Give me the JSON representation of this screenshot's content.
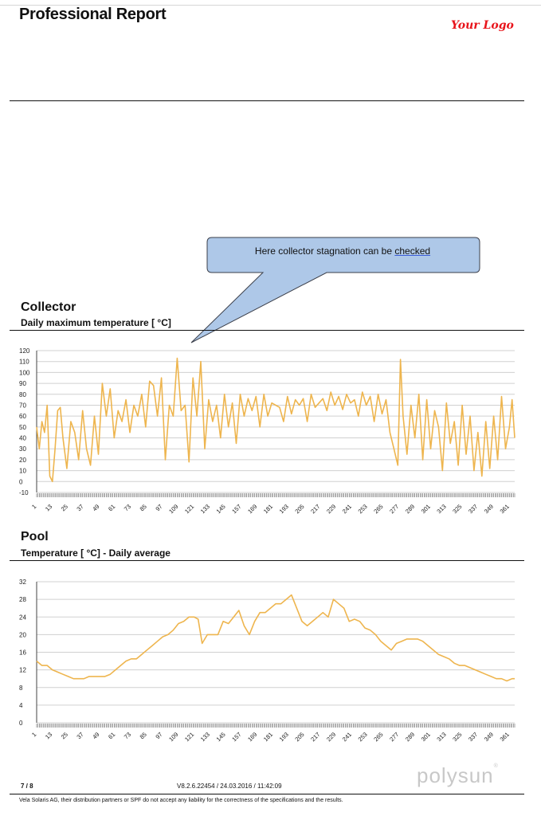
{
  "header": {
    "title": "Professional Report",
    "logo": "Your Logo"
  },
  "callout": {
    "text": "Here collector stagnation can be ",
    "link": "checked"
  },
  "sections": {
    "collector": {
      "title": "Collector",
      "subtitle": "Daily maximum temperature [ °C]"
    },
    "pool": {
      "title": "Pool",
      "subtitle": "Temperature [ °C] - Daily average"
    }
  },
  "colors": {
    "series": "#eeb54e",
    "grid": "#d0d0d0",
    "logo": "#e8141b",
    "callout_fill": "#aec8e8"
  },
  "chart_data": [
    {
      "type": "line",
      "title": "Collector - Daily maximum temperature [ °C]",
      "xlabel": "",
      "ylabel": "",
      "ylim": [
        -10,
        120
      ],
      "yticks": [
        -10,
        0,
        10,
        20,
        30,
        40,
        50,
        60,
        70,
        80,
        90,
        100,
        110,
        120
      ],
      "xticks": [
        "1",
        "13",
        "25",
        "37",
        "49",
        "61",
        "73",
        "85",
        "97",
        "109",
        "121",
        "133",
        "145",
        "157",
        "169",
        "181",
        "193",
        "205",
        "217",
        "229",
        "241",
        "253",
        "265",
        "277",
        "289",
        "301",
        "313",
        "325",
        "337",
        "349",
        "361"
      ],
      "x_range": [
        1,
        365
      ],
      "series": [
        {
          "name": "Daily maximum temperature",
          "x": [
            1,
            3,
            5,
            7,
            9,
            11,
            13,
            15,
            17,
            19,
            21,
            24,
            27,
            30,
            33,
            36,
            39,
            42,
            45,
            48,
            51,
            54,
            57,
            60,
            63,
            66,
            69,
            72,
            75,
            78,
            81,
            84,
            87,
            90,
            93,
            96,
            99,
            102,
            105,
            108,
            111,
            114,
            117,
            120,
            123,
            126,
            129,
            132,
            135,
            138,
            141,
            144,
            147,
            150,
            153,
            156,
            159,
            162,
            165,
            168,
            171,
            174,
            177,
            180,
            183,
            186,
            189,
            192,
            195,
            198,
            201,
            204,
            207,
            210,
            213,
            216,
            219,
            222,
            225,
            228,
            231,
            234,
            237,
            240,
            243,
            246,
            249,
            252,
            255,
            258,
            261,
            264,
            267,
            270,
            273,
            276,
            278,
            280,
            283,
            286,
            289,
            292,
            295,
            298,
            301,
            304,
            307,
            310,
            313,
            316,
            319,
            322,
            325,
            328,
            331,
            334,
            337,
            340,
            343,
            346,
            349,
            352,
            355,
            358,
            361,
            363,
            365
          ],
          "y": [
            50,
            30,
            55,
            45,
            70,
            5,
            0,
            30,
            65,
            68,
            40,
            12,
            55,
            45,
            20,
            65,
            30,
            15,
            60,
            25,
            90,
            60,
            85,
            40,
            65,
            55,
            75,
            45,
            70,
            60,
            80,
            50,
            92,
            88,
            60,
            95,
            20,
            70,
            60,
            113,
            65,
            70,
            18,
            95,
            60,
            110,
            30,
            75,
            55,
            70,
            40,
            80,
            50,
            72,
            35,
            80,
            60,
            76,
            65,
            78,
            50,
            80,
            60,
            72,
            70,
            68,
            55,
            78,
            62,
            75,
            70,
            76,
            55,
            80,
            68,
            72,
            76,
            65,
            82,
            70,
            78,
            66,
            80,
            72,
            75,
            60,
            82,
            70,
            78,
            55,
            80,
            62,
            75,
            45,
            30,
            15,
            112,
            60,
            25,
            70,
            40,
            80,
            20,
            75,
            30,
            65,
            50,
            10,
            72,
            35,
            55,
            15,
            70,
            25,
            60,
            10,
            45,
            5,
            55,
            12,
            60,
            20,
            78,
            30,
            50,
            75,
            40
          ]
        }
      ]
    },
    {
      "type": "line",
      "title": "Pool - Temperature [ °C] - Daily average",
      "xlabel": "",
      "ylabel": "",
      "ylim": [
        0,
        32
      ],
      "yticks": [
        0,
        4,
        8,
        12,
        16,
        20,
        24,
        28,
        32
      ],
      "xticks": [
        "1",
        "13",
        "25",
        "37",
        "49",
        "61",
        "73",
        "85",
        "97",
        "109",
        "121",
        "133",
        "145",
        "157",
        "169",
        "181",
        "193",
        "205",
        "217",
        "229",
        "241",
        "253",
        "265",
        "277",
        "289",
        "301",
        "313",
        "325",
        "337",
        "349",
        "361"
      ],
      "x_range": [
        1,
        365
      ],
      "series": [
        {
          "name": "Daily average temperature",
          "x": [
            1,
            5,
            9,
            13,
            17,
            21,
            25,
            29,
            33,
            37,
            41,
            45,
            49,
            53,
            57,
            61,
            65,
            69,
            73,
            77,
            81,
            85,
            89,
            93,
            97,
            101,
            105,
            109,
            113,
            117,
            121,
            124,
            127,
            131,
            135,
            139,
            143,
            147,
            151,
            155,
            159,
            163,
            167,
            171,
            175,
            179,
            183,
            187,
            191,
            195,
            199,
            203,
            207,
            211,
            215,
            219,
            223,
            227,
            231,
            235,
            239,
            243,
            247,
            251,
            255,
            259,
            263,
            267,
            271,
            275,
            279,
            283,
            287,
            291,
            295,
            299,
            303,
            307,
            311,
            315,
            319,
            323,
            327,
            331,
            335,
            339,
            343,
            347,
            351,
            355,
            359,
            363,
            365
          ],
          "y": [
            14,
            13,
            13,
            12,
            11.5,
            11,
            10.5,
            10,
            10,
            10,
            10.5,
            10.5,
            10.5,
            10.5,
            11,
            12,
            13,
            14,
            14.5,
            14.5,
            15.5,
            16.5,
            17.5,
            18.5,
            19.5,
            20,
            21,
            22.5,
            23,
            24,
            24,
            23.5,
            18,
            20,
            20,
            20,
            23,
            22.5,
            24,
            25.5,
            22,
            20,
            23,
            25,
            25,
            26,
            27,
            27,
            28,
            29,
            26,
            23,
            22,
            23,
            24,
            25,
            24,
            28,
            27,
            26,
            23,
            23.5,
            23,
            21.5,
            21,
            20,
            18.5,
            17.5,
            16.5,
            18,
            18.5,
            19,
            19,
            19,
            18.5,
            17.5,
            16.5,
            15.5,
            15,
            14.5,
            13.5,
            13,
            13,
            12.5,
            12,
            11.5,
            11,
            10.5,
            10,
            10,
            9.5,
            10,
            10
          ]
        }
      ]
    }
  ],
  "footer": {
    "page": "7  /  8",
    "version": "V8.2.6.22454 / 24.03.2016 / 11:42:09",
    "brand": "polysun",
    "brand_mark": "®",
    "disclaimer": "Vela Solaris AG, their distribution partners or SPF do not accept any liability for the correctness of the specifications and the results."
  }
}
